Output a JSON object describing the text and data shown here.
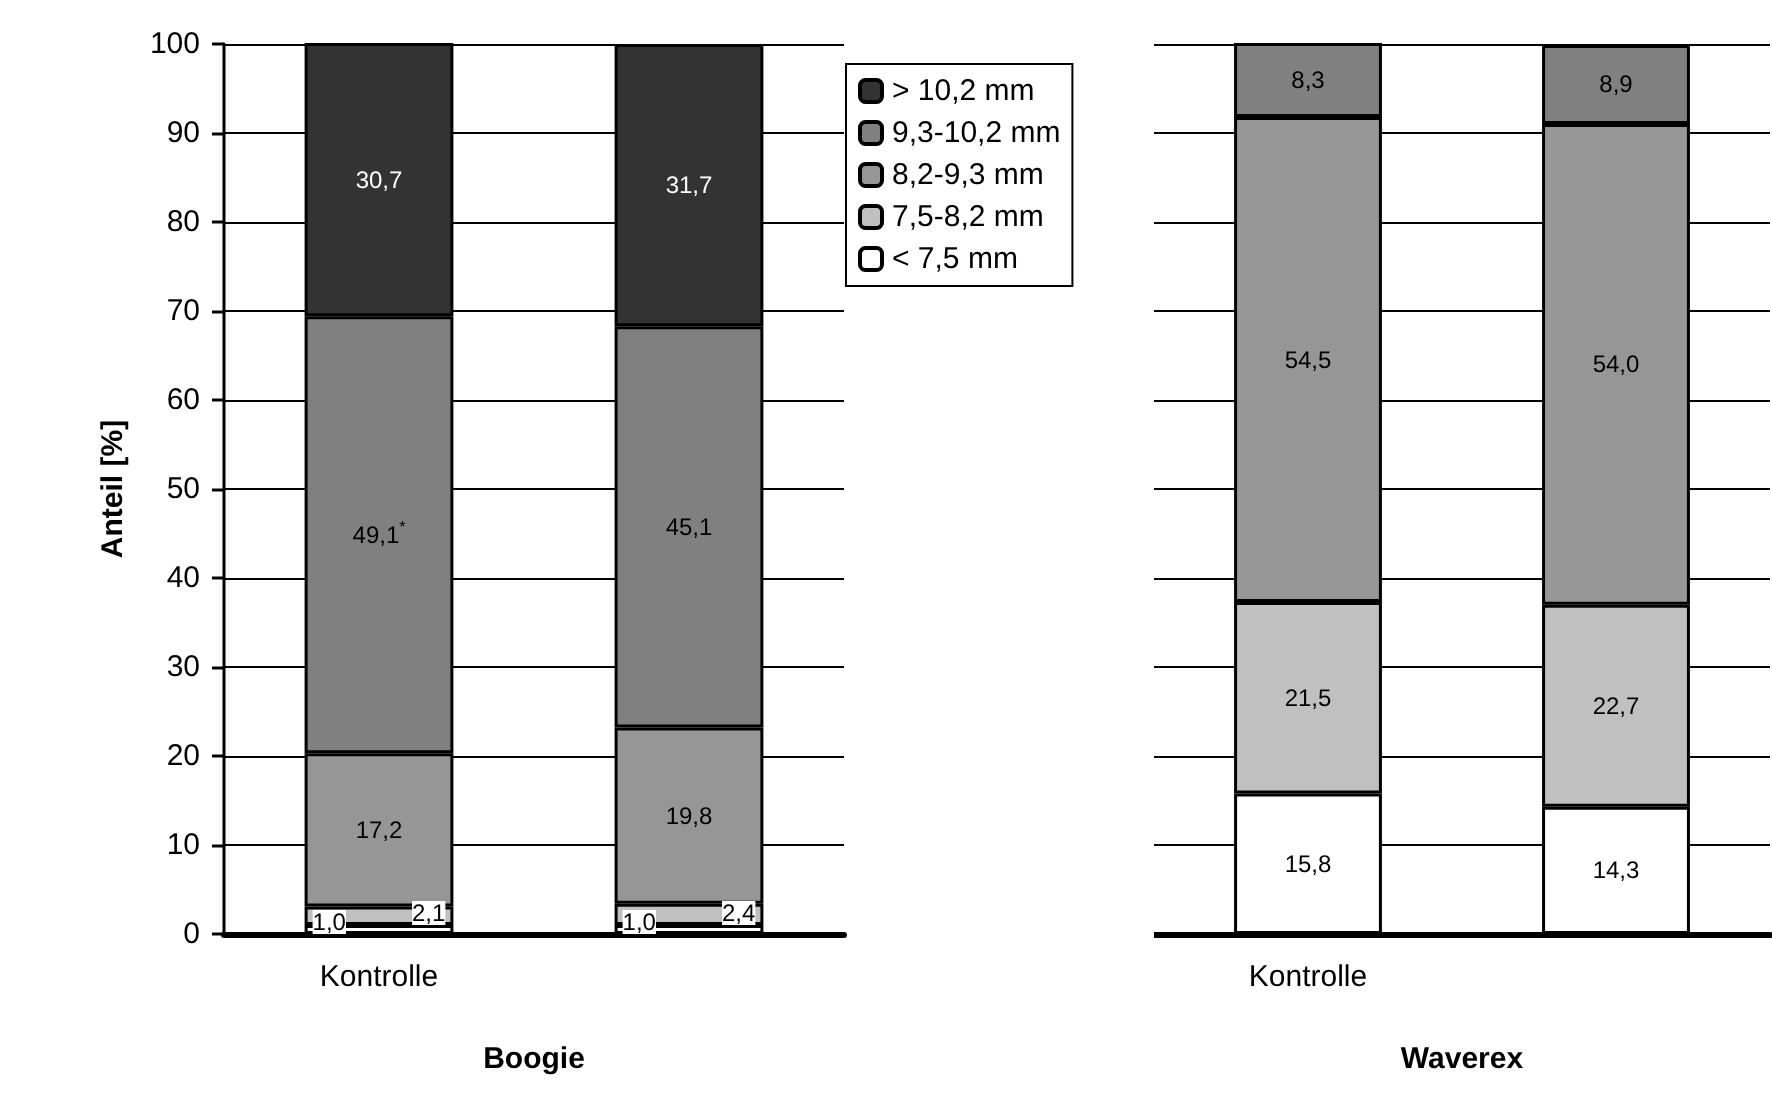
{
  "chart_data": [
    {
      "type": "bar",
      "stacked": true,
      "ylabel": "Anteil [%]",
      "xlabel": "Boogie",
      "categories": [
        "Kontrolle",
        null
      ],
      "ylim": [
        0,
        100
      ],
      "yticks": [
        0,
        10,
        20,
        30,
        40,
        50,
        60,
        70,
        80,
        90,
        100
      ],
      "grid": "y",
      "legend": "top right",
      "series": [
        {
          "name": "< 7,5 mm",
          "color": "#ffffff",
          "values": [
            1.0,
            1.0
          ],
          "value_labels": [
            "1,0",
            "1,0"
          ]
        },
        {
          "name": "7,5-8,2 mm",
          "color": "#c0c0c0",
          "values": [
            2.1,
            2.4
          ],
          "value_labels": [
            "2,1",
            "2,4"
          ]
        },
        {
          "name": "8,2-9,3 mm",
          "color": "#969696",
          "values": [
            17.2,
            19.8
          ],
          "value_labels": [
            "17,2",
            "19,8"
          ]
        },
        {
          "name": "9,3-10,2 mm",
          "color": "#808080",
          "values": [
            49.1,
            45.1
          ],
          "value_labels": [
            "49,1$^{*}$",
            "45,1"
          ]
        },
        {
          "name": "> 10,2 mm",
          "color": "#333333",
          "values": [
            30.7,
            31.7
          ],
          "value_labels": [
            "30,7",
            "31,7"
          ]
        }
      ]
    },
    {
      "type": "bar",
      "stacked": true,
      "xlabel": "Waverex",
      "categories": [
        "Kontrolle",
        null
      ],
      "ylim": [
        0,
        100
      ],
      "yticks": [
        0,
        10,
        20,
        30,
        40,
        50,
        60,
        70,
        80,
        90,
        100
      ],
      "grid": "y",
      "tick_labels": "x",
      "series": [
        {
          "color": "#ffffff",
          "values": [
            15.8,
            14.3
          ],
          "value_labels": [
            "15,8",
            "14,3"
          ]
        },
        {
          "color": "#c0c0c0",
          "values": [
            21.5,
            22.7
          ],
          "value_labels": [
            "21,5",
            "22,7"
          ]
        },
        {
          "color": "#969696",
          "values": [
            54.5,
            54.0
          ],
          "value_labels": [
            "54,5",
            "54,0"
          ]
        },
        {
          "color": "#808080",
          "values": [
            8.3,
            8.9
          ],
          "value_labels": [
            "8,3",
            "8,9"
          ]
        }
      ]
    }
  ]
}
